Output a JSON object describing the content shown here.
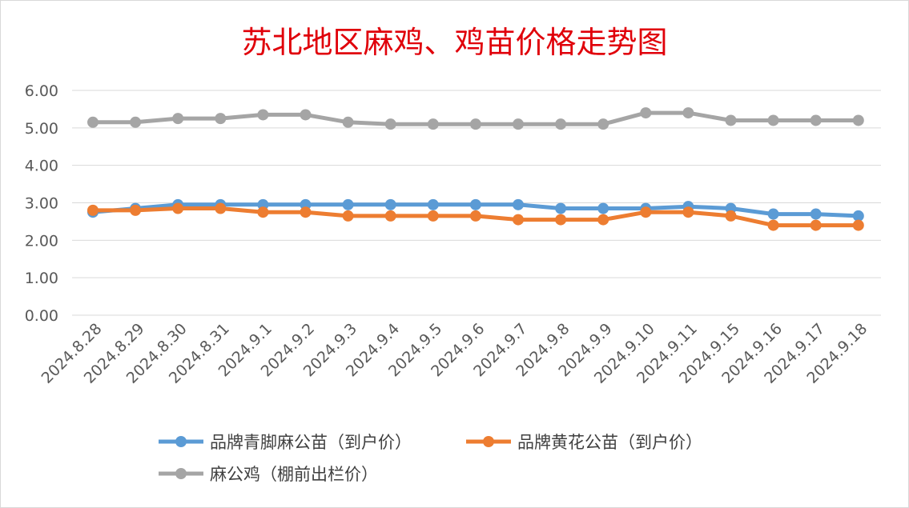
{
  "chart_data": {
    "type": "line",
    "title": "苏北地区麻鸡、鸡苗价格走势图",
    "xlabel": "",
    "ylabel": "",
    "ylim": [
      0,
      6
    ],
    "y_ticks": [
      "0.00",
      "1.00",
      "2.00",
      "3.00",
      "4.00",
      "5.00",
      "6.00"
    ],
    "grid": true,
    "legend_position": "bottom",
    "categories": [
      "2024.8.28",
      "2024.8.29",
      "2024.8.30",
      "2024.8.31",
      "2024.9.1",
      "2024.9.2",
      "2024.9.3",
      "2024.9.4",
      "2024.9.5",
      "2024.9.6",
      "2024.9.7",
      "2024.9.8",
      "2024.9.9",
      "2024.9.10",
      "2024.9.11",
      "2024.9.15",
      "2024.9.16",
      "2024.9.17",
      "2024.9.18"
    ],
    "series": [
      {
        "name": "品牌青脚麻公苗（到户价）",
        "color": "#5b9bd5",
        "values": [
          2.75,
          2.85,
          2.95,
          2.95,
          2.95,
          2.95,
          2.95,
          2.95,
          2.95,
          2.95,
          2.95,
          2.85,
          2.85,
          2.85,
          2.9,
          2.85,
          2.7,
          2.7,
          2.65
        ]
      },
      {
        "name": "品牌黄花公苗（到户价）",
        "color": "#ed7d31",
        "values": [
          2.8,
          2.8,
          2.85,
          2.85,
          2.75,
          2.75,
          2.65,
          2.65,
          2.65,
          2.65,
          2.55,
          2.55,
          2.55,
          2.75,
          2.75,
          2.65,
          2.4,
          2.4,
          2.4
        ]
      },
      {
        "name": "麻公鸡（棚前出栏价）",
        "color": "#a5a5a5",
        "values": [
          5.15,
          5.15,
          5.25,
          5.25,
          5.35,
          5.35,
          5.15,
          5.1,
          5.1,
          5.1,
          5.1,
          5.1,
          5.1,
          5.4,
          5.4,
          5.2,
          5.2,
          5.2,
          5.2
        ]
      }
    ]
  }
}
